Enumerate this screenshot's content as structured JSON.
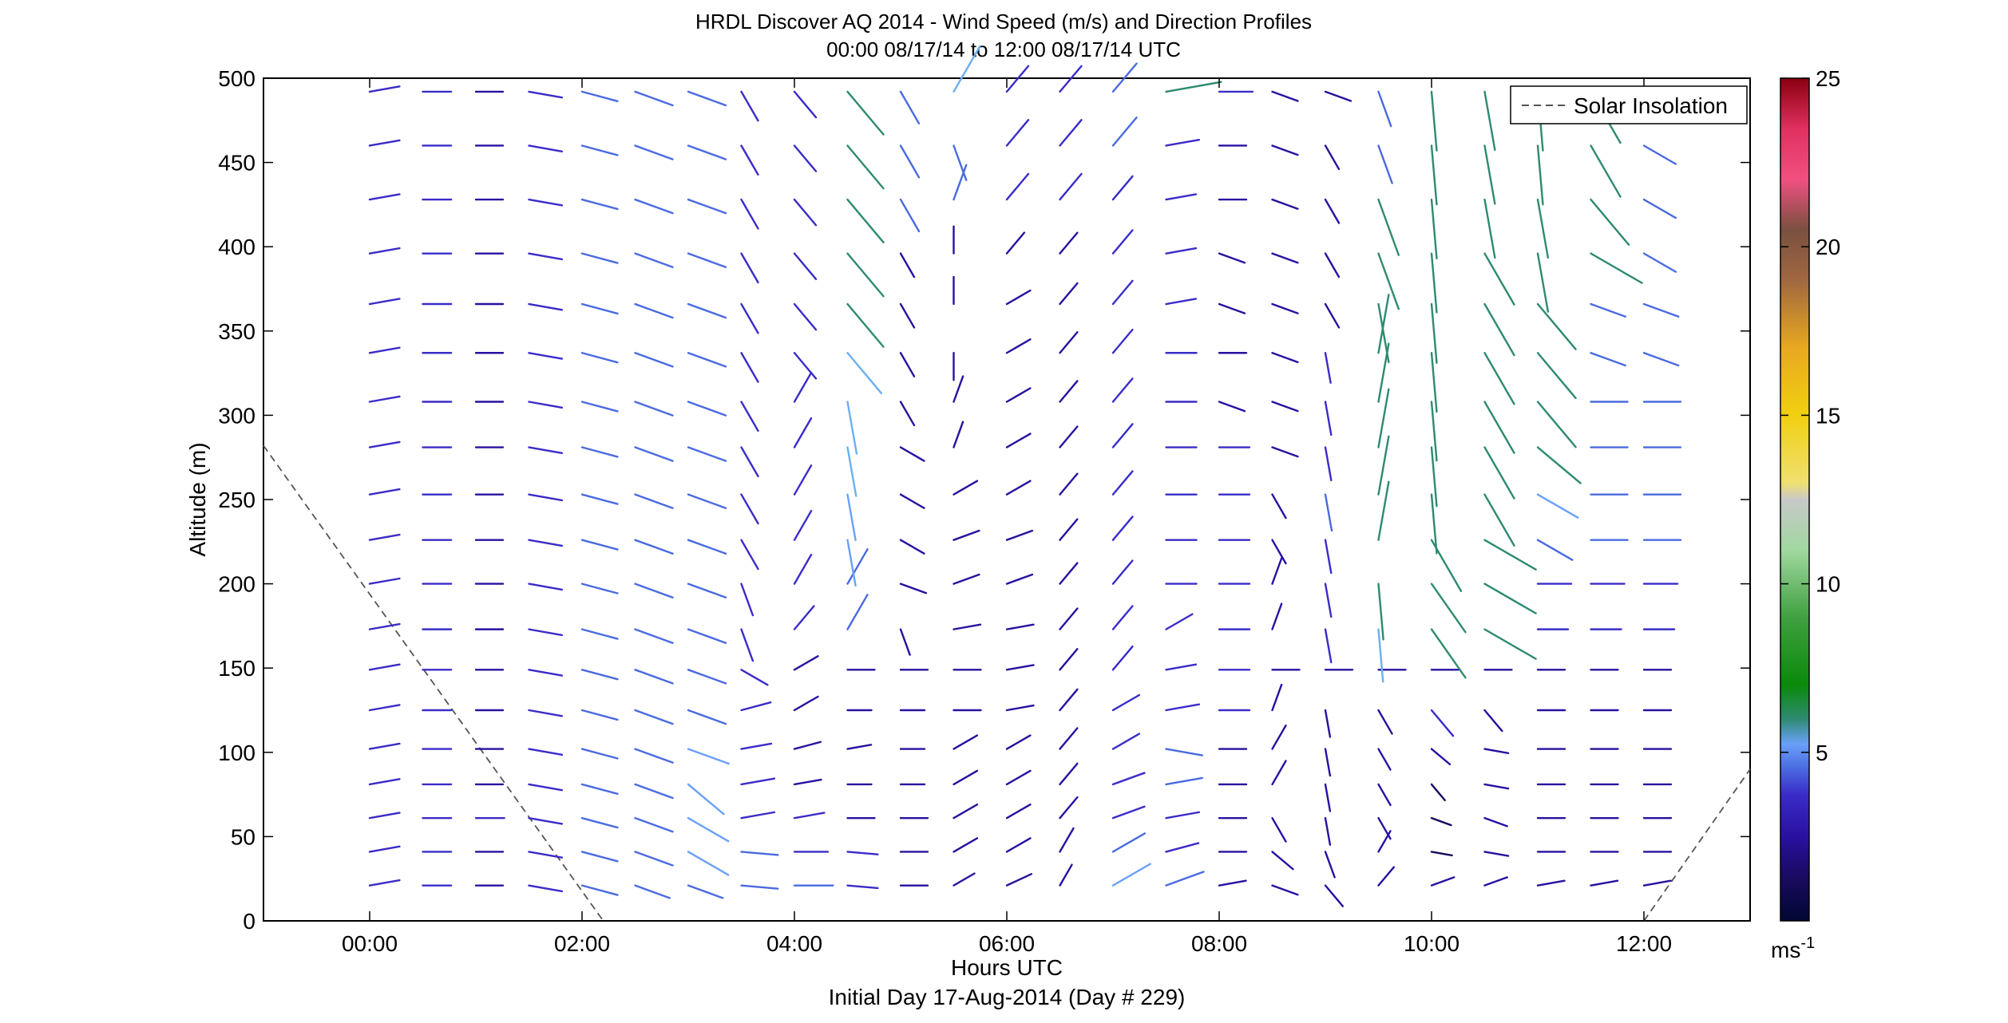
{
  "chart_data": {
    "type": "vector-field",
    "title": "HRDL Discover AQ 2014 - Wind Speed (m/s) and Direction Profiles",
    "subtitle": "00:00 08/17/14 to 12:00 08/17/14  UTC",
    "xlabel": "Hours UTC",
    "xlabel2": "Initial Day 17-Aug-2014 (Day # 229)",
    "ylabel": "Altitude (m)",
    "xlim": [
      -1.0,
      13.0
    ],
    "ylim": [
      0,
      500
    ],
    "x_ticks": [
      0,
      2,
      4,
      6,
      8,
      10,
      12
    ],
    "x_tick_labels": [
      "00:00",
      "02:00",
      "04:00",
      "06:00",
      "08:00",
      "10:00",
      "12:00"
    ],
    "y_ticks": [
      0,
      50,
      100,
      150,
      200,
      250,
      300,
      350,
      400,
      450,
      500
    ],
    "y_tick_labels": [
      "0",
      "50",
      "100",
      "150",
      "200",
      "250",
      "300",
      "350",
      "400",
      "450",
      "500"
    ],
    "grid": false,
    "legend": {
      "position": "top-right",
      "entries": [
        "Solar Insolation"
      ]
    },
    "colorbar": {
      "min": 0,
      "max": 25,
      "ticks": [
        5,
        10,
        15,
        20,
        25
      ],
      "tick_labels": [
        "5",
        "10",
        "15",
        "20",
        "25"
      ],
      "unit_label": "ms",
      "unit_exponent": "-1"
    },
    "solar_insolation": {
      "style": "dashed",
      "color": "#555555",
      "segments": [
        [
          [
            -1.0,
            282
          ],
          [
            2.2,
            0
          ]
        ],
        [
          [
            12.0,
            0
          ],
          [
            13.0,
            90
          ]
        ]
      ]
    },
    "wind_profiles": {
      "altitudes": [
        21,
        41,
        61,
        81,
        102,
        125,
        149,
        173,
        200,
        226,
        253,
        281,
        308,
        337,
        366,
        396,
        428,
        460,
        492
      ],
      "times": [
        0.0,
        0.5,
        1.0,
        1.5,
        2.0,
        2.5,
        3.0,
        3.5,
        4.0,
        4.5,
        5.0,
        5.5,
        6.0,
        6.5,
        7.0,
        7.5,
        8.0,
        8.5,
        9.0,
        9.5,
        10.0,
        10.5,
        11.0,
        11.5,
        12.0
      ],
      "note_units": "speed in m/s, direction in degrees (direction the arrow points, 0 = north)",
      "speed": [
        [
          3.5,
          3.2,
          3.0,
          4.0,
          4.5,
          4.5,
          4.5,
          4.5,
          4.8,
          3.5,
          3.0,
          2.5,
          3.0,
          2.5,
          5.5,
          5.0,
          3.0,
          3.0,
          3.0,
          2.5,
          2.5,
          2.5,
          3.0,
          3.0,
          3.0
        ],
        [
          3.5,
          3.2,
          3.0,
          4.0,
          4.5,
          5.0,
          6.0,
          4.5,
          4.0,
          3.5,
          3.0,
          3.0,
          3.0,
          3.0,
          4.5,
          4.0,
          3.0,
          3.0,
          3.0,
          2.5,
          2.0,
          2.5,
          3.0,
          3.0,
          3.0
        ],
        [
          3.5,
          3.2,
          3.2,
          4.0,
          4.5,
          5.0,
          6.0,
          4.0,
          3.5,
          3.0,
          3.0,
          3.0,
          3.0,
          3.0,
          4.0,
          4.0,
          3.0,
          3.0,
          3.0,
          2.5,
          2.0,
          2.5,
          3.0,
          3.0,
          3.0
        ],
        [
          3.5,
          3.2,
          3.0,
          4.0,
          4.5,
          5.0,
          6.0,
          4.0,
          3.0,
          2.5,
          2.5,
          3.0,
          3.0,
          3.0,
          4.0,
          4.5,
          3.0,
          3.0,
          3.0,
          2.5,
          2.0,
          2.5,
          3.0,
          3.0,
          3.0
        ],
        [
          3.5,
          3.2,
          3.0,
          4.0,
          4.5,
          5.0,
          5.5,
          3.5,
          3.0,
          2.5,
          2.5,
          3.0,
          3.0,
          3.0,
          3.5,
          4.5,
          3.0,
          3.0,
          3.0,
          2.5,
          2.5,
          2.5,
          3.0,
          3.0,
          3.0
        ],
        [
          3.5,
          3.2,
          3.0,
          4.0,
          4.5,
          5.0,
          5.0,
          3.5,
          3.0,
          2.5,
          2.5,
          3.0,
          3.0,
          3.0,
          3.5,
          4.0,
          3.5,
          3.0,
          3.0,
          3.0,
          4.0,
          3.0,
          3.0,
          3.0,
          3.0
        ],
        [
          3.5,
          3.2,
          3.0,
          4.0,
          4.5,
          5.0,
          5.0,
          3.5,
          3.0,
          3.0,
          3.0,
          3.0,
          3.0,
          3.0,
          3.5,
          3.5,
          3.5,
          3.0,
          3.0,
          3.0,
          3.0,
          3.0,
          3.0,
          3.0,
          3.0
        ],
        [
          3.5,
          3.2,
          3.0,
          4.0,
          4.5,
          5.0,
          5.0,
          4.0,
          3.5,
          5.0,
          3.0,
          3.0,
          3.0,
          3.0,
          3.5,
          3.5,
          3.5,
          3.0,
          4.0,
          7.0,
          8.0,
          8.0,
          3.5,
          3.5,
          3.5
        ],
        [
          3.5,
          3.2,
          3.0,
          4.0,
          4.5,
          5.0,
          5.0,
          4.0,
          4.0,
          5.0,
          3.0,
          3.0,
          3.0,
          3.0,
          3.5,
          3.5,
          3.5,
          3.0,
          4.0,
          7.5,
          8.0,
          8.0,
          4.0,
          4.0,
          4.0
        ],
        [
          3.5,
          3.2,
          3.0,
          4.0,
          4.5,
          5.0,
          5.0,
          4.0,
          4.0,
          6.0,
          3.0,
          3.0,
          3.0,
          3.0,
          3.5,
          3.5,
          3.5,
          3.0,
          4.0,
          8.0,
          8.0,
          8.0,
          5.0,
          4.5,
          4.5
        ],
        [
          3.5,
          3.2,
          3.0,
          4.0,
          4.5,
          5.0,
          5.0,
          4.0,
          4.0,
          6.0,
          3.0,
          3.0,
          3.0,
          3.0,
          3.5,
          3.5,
          3.5,
          3.0,
          4.5,
          8.0,
          8.0,
          8.0,
          6.0,
          4.5,
          4.5
        ],
        [
          3.5,
          3.2,
          3.0,
          4.0,
          4.5,
          5.0,
          5.0,
          4.0,
          4.0,
          6.5,
          3.0,
          3.0,
          3.0,
          3.0,
          3.5,
          3.5,
          3.5,
          3.0,
          4.0,
          8.0,
          8.0,
          8.0,
          7.5,
          4.5,
          4.5
        ],
        [
          3.5,
          3.2,
          3.0,
          4.0,
          4.5,
          5.0,
          5.0,
          4.0,
          4.0,
          7.0,
          3.0,
          3.0,
          3.0,
          3.0,
          3.5,
          3.5,
          3.0,
          3.0,
          4.0,
          8.0,
          8.0,
          8.0,
          8.0,
          4.5,
          4.5
        ],
        [
          3.5,
          3.2,
          3.0,
          4.0,
          4.5,
          5.0,
          5.0,
          4.0,
          4.0,
          7.0,
          3.0,
          3.0,
          3.0,
          3.0,
          3.5,
          3.5,
          3.0,
          3.0,
          3.5,
          8.0,
          8.0,
          8.0,
          8.0,
          4.5,
          4.5
        ],
        [
          3.5,
          3.2,
          3.0,
          4.0,
          4.5,
          5.0,
          5.0,
          4.0,
          4.0,
          7.5,
          3.0,
          3.0,
          3.0,
          3.0,
          3.5,
          3.5,
          3.0,
          3.0,
          3.0,
          8.0,
          8.0,
          8.0,
          8.0,
          4.5,
          4.5
        ],
        [
          3.5,
          3.2,
          3.0,
          4.0,
          4.5,
          5.0,
          5.0,
          4.0,
          4.0,
          7.5,
          3.0,
          3.0,
          3.0,
          3.0,
          3.5,
          3.5,
          3.0,
          3.0,
          3.0,
          8.0,
          8.0,
          8.0,
          8.0,
          8.0,
          4.5
        ],
        [
          3.5,
          3.2,
          3.0,
          4.0,
          4.5,
          5.0,
          5.0,
          4.0,
          4.0,
          7.5,
          4.5,
          4.5,
          4.0,
          4.0,
          3.5,
          3.5,
          3.0,
          3.0,
          3.0,
          8.0,
          8.0,
          8.0,
          8.0,
          8.0,
          4.5
        ],
        [
          3.5,
          3.2,
          3.0,
          4.0,
          4.5,
          5.0,
          5.0,
          4.0,
          4.0,
          7.5,
          4.5,
          4.5,
          4.0,
          4.0,
          4.5,
          4.0,
          3.0,
          3.0,
          3.0,
          5.0,
          8.0,
          8.0,
          8.0,
          8.0,
          4.5
        ],
        [
          3.5,
          3.2,
          3.0,
          4.0,
          4.5,
          5.0,
          5.0,
          4.0,
          4.0,
          7.5,
          4.5,
          7.0,
          4.0,
          4.0,
          4.5,
          7.5,
          4.0,
          3.0,
          3.0,
          4.5,
          8.0,
          8.0,
          8.0,
          8.0,
          4.5
        ]
      ],
      "direction": [
        [
          80,
          90,
          90,
          100,
          105,
          110,
          110,
          95,
          90,
          95,
          90,
          60,
          65,
          30,
          60,
          70,
          80,
          110,
          140,
          40,
          70,
          70,
          80,
          80,
          80
        ],
        [
          80,
          90,
          90,
          100,
          105,
          110,
          120,
          95,
          90,
          95,
          90,
          60,
          60,
          30,
          60,
          75,
          90,
          130,
          160,
          30,
          100,
          100,
          90,
          90,
          90
        ],
        [
          80,
          90,
          90,
          100,
          105,
          110,
          120,
          80,
          80,
          90,
          90,
          60,
          60,
          40,
          70,
          80,
          90,
          150,
          170,
          150,
          110,
          110,
          90,
          90,
          90
        ],
        [
          80,
          90,
          90,
          100,
          105,
          110,
          130,
          80,
          80,
          90,
          90,
          60,
          60,
          40,
          70,
          80,
          90,
          30,
          170,
          150,
          140,
          100,
          90,
          90,
          90
        ],
        [
          80,
          90,
          90,
          100,
          105,
          110,
          110,
          80,
          75,
          80,
          90,
          60,
          60,
          40,
          60,
          100,
          90,
          30,
          170,
          150,
          130,
          100,
          90,
          90,
          90
        ],
        [
          80,
          90,
          90,
          100,
          105,
          110,
          110,
          75,
          60,
          90,
          90,
          90,
          80,
          40,
          60,
          80,
          90,
          20,
          170,
          150,
          140,
          140,
          90,
          90,
          90
        ],
        [
          80,
          90,
          90,
          100,
          105,
          110,
          110,
          120,
          60,
          90,
          90,
          90,
          80,
          40,
          40,
          80,
          90,
          90,
          90,
          90,
          90,
          90,
          90,
          90,
          90
        ],
        [
          80,
          90,
          90,
          100,
          105,
          110,
          110,
          160,
          40,
          30,
          160,
          80,
          80,
          40,
          40,
          60,
          90,
          20,
          170,
          175,
          145,
          120,
          90,
          90,
          90
        ],
        [
          80,
          90,
          90,
          100,
          105,
          110,
          110,
          160,
          30,
          30,
          110,
          70,
          70,
          40,
          40,
          90,
          90,
          20,
          170,
          175,
          145,
          120,
          90,
          90,
          90
        ],
        [
          80,
          90,
          90,
          100,
          105,
          110,
          110,
          150,
          30,
          170,
          120,
          70,
          70,
          40,
          40,
          90,
          90,
          150,
          170,
          10,
          150,
          120,
          120,
          90,
          90
        ],
        [
          80,
          90,
          90,
          100,
          105,
          110,
          110,
          150,
          30,
          170,
          120,
          60,
          60,
          40,
          40,
          90,
          90,
          150,
          170,
          10,
          175,
          150,
          120,
          90,
          90
        ],
        [
          80,
          90,
          90,
          100,
          105,
          110,
          110,
          150,
          30,
          170,
          120,
          20,
          60,
          40,
          40,
          90,
          90,
          110,
          170,
          10,
          175,
          150,
          130,
          90,
          90
        ],
        [
          80,
          90,
          90,
          100,
          105,
          110,
          110,
          150,
          30,
          170,
          150,
          20,
          60,
          40,
          40,
          90,
          110,
          110,
          170,
          10,
          175,
          150,
          140,
          90,
          90
        ],
        [
          80,
          90,
          90,
          100,
          105,
          110,
          110,
          150,
          140,
          140,
          150,
          180,
          60,
          40,
          40,
          90,
          90,
          110,
          170,
          10,
          175,
          150,
          140,
          110,
          110
        ],
        [
          80,
          90,
          90,
          100,
          105,
          110,
          110,
          150,
          140,
          140,
          150,
          0,
          60,
          40,
          40,
          80,
          110,
          110,
          150,
          170,
          175,
          150,
          140,
          110,
          110
        ],
        [
          80,
          90,
          90,
          100,
          105,
          110,
          110,
          150,
          140,
          140,
          150,
          0,
          40,
          40,
          40,
          80,
          110,
          110,
          150,
          160,
          175,
          150,
          170,
          120,
          120
        ],
        [
          80,
          90,
          90,
          100,
          105,
          110,
          110,
          150,
          140,
          140,
          150,
          20,
          40,
          40,
          40,
          80,
          90,
          110,
          150,
          160,
          175,
          170,
          170,
          140,
          120
        ],
        [
          80,
          90,
          90,
          100,
          105,
          110,
          110,
          150,
          140,
          140,
          150,
          160,
          40,
          40,
          40,
          80,
          90,
          110,
          150,
          160,
          175,
          170,
          175,
          150,
          120
        ],
        [
          80,
          90,
          90,
          100,
          105,
          110,
          110,
          150,
          140,
          140,
          150,
          30,
          40,
          40,
          40,
          80,
          90,
          110,
          110,
          160,
          175,
          170,
          175,
          150,
          120
        ]
      ]
    }
  },
  "colors": {
    "axis": "#000000",
    "solar_line": "#555555",
    "colormap": [
      "#000833",
      "#1a0a5e",
      "#2a10a0",
      "#3a2cc8",
      "#4a6ae0",
      "#6aa0f8",
      "#6ab0f0",
      "#2e8a70",
      "#0a8a0a",
      "#40a040",
      "#70c070",
      "#a0d8a0",
      "#c8c8c8",
      "#f0e070",
      "#f0d010",
      "#e8a820",
      "#c08040",
      "#a06840",
      "#7a5040",
      "#c04060",
      "#f05080",
      "#e03060",
      "#b00020",
      "#8a0010"
    ]
  }
}
